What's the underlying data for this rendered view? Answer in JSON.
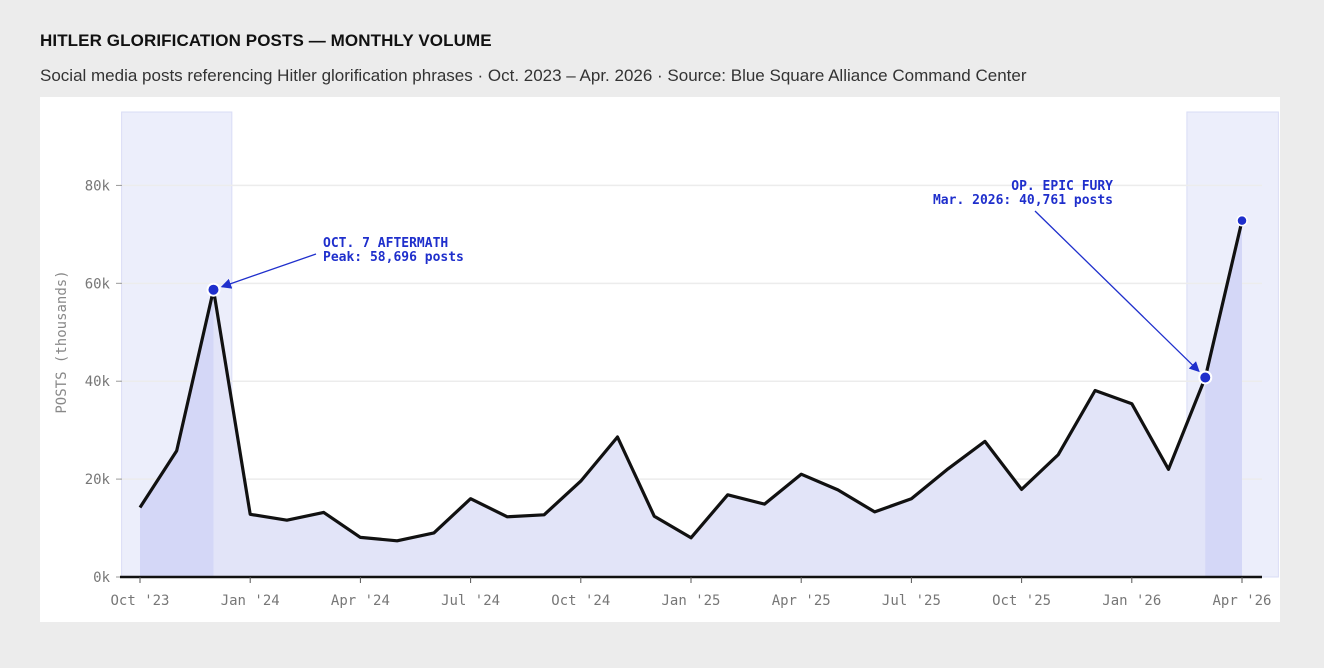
{
  "title": "HITLER GLORIFICATION POSTS — MONTHLY VOLUME",
  "subtitle": "Social media posts referencing Hitler glorification phrases · Oct. 2023 – Apr. 2026 · Source: Blue Square Alliance Command Center",
  "chart_data": {
    "type": "area",
    "ylabel": "POSTS (thousands)",
    "ylim": [
      0,
      95000
    ],
    "y_ticks": [
      {
        "value": 0,
        "label": "0k"
      },
      {
        "value": 20000,
        "label": "20k"
      },
      {
        "value": 40000,
        "label": "40k"
      },
      {
        "value": 60000,
        "label": "60k"
      },
      {
        "value": 80000,
        "label": "80k"
      }
    ],
    "x_ticks": [
      {
        "month": "2023-10",
        "label": "Oct '23"
      },
      {
        "month": "2024-01",
        "label": "Jan '24"
      },
      {
        "month": "2024-04",
        "label": "Apr '24"
      },
      {
        "month": "2024-07",
        "label": "Jul '24"
      },
      {
        "month": "2024-10",
        "label": "Oct '24"
      },
      {
        "month": "2025-01",
        "label": "Jan '25"
      },
      {
        "month": "2025-04",
        "label": "Apr '25"
      },
      {
        "month": "2025-07",
        "label": "Jul '25"
      },
      {
        "month": "2025-10",
        "label": "Oct '25"
      },
      {
        "month": "2026-01",
        "label": "Jan '26"
      },
      {
        "month": "2026-04",
        "label": "Apr '26"
      }
    ],
    "x": [
      "2023-10",
      "2023-11",
      "2023-12",
      "2024-01",
      "2024-02",
      "2024-03",
      "2024-04",
      "2024-05",
      "2024-06",
      "2024-07",
      "2024-08",
      "2024-09",
      "2024-10",
      "2024-11",
      "2024-12",
      "2025-01",
      "2025-02",
      "2025-03",
      "2025-04",
      "2025-05",
      "2025-06",
      "2025-07",
      "2025-08",
      "2025-09",
      "2025-10",
      "2025-11",
      "2025-12",
      "2026-01",
      "2026-02",
      "2026-03",
      "2026-04"
    ],
    "values": [
      14200,
      25800,
      58696,
      12800,
      11600,
      13200,
      8100,
      7400,
      9000,
      16000,
      12300,
      12700,
      19600,
      28600,
      12400,
      8000,
      16800,
      14900,
      21000,
      17800,
      13300,
      16000,
      22100,
      27700,
      17900,
      25000,
      38100,
      35400,
      22000,
      40761,
      72800
    ],
    "highlight_ranges": [
      {
        "start": "2023-10",
        "end": "2023-12"
      },
      {
        "start": "2026-03",
        "end": "2026-04"
      }
    ],
    "colors": {
      "line": "#111111",
      "fill": "#e2e4f8",
      "band": "#d4d7f7",
      "accent": "#1f2fcc",
      "grid": "#ececec"
    },
    "annotations": [
      {
        "month": "2023-12",
        "value": 58696,
        "lines": [
          "OCT. 7 AFTERMATH",
          "Peak: 58,696 posts"
        ],
        "align": "start"
      },
      {
        "month": "2026-03",
        "value": 40761,
        "lines": [
          "OP. EPIC FURY",
          "Mar. 2026: 40,761 posts"
        ],
        "align": "end"
      }
    ],
    "end_marker": {
      "month": "2026-04",
      "value": 72800
    },
    "grid": true,
    "legend": "none"
  }
}
